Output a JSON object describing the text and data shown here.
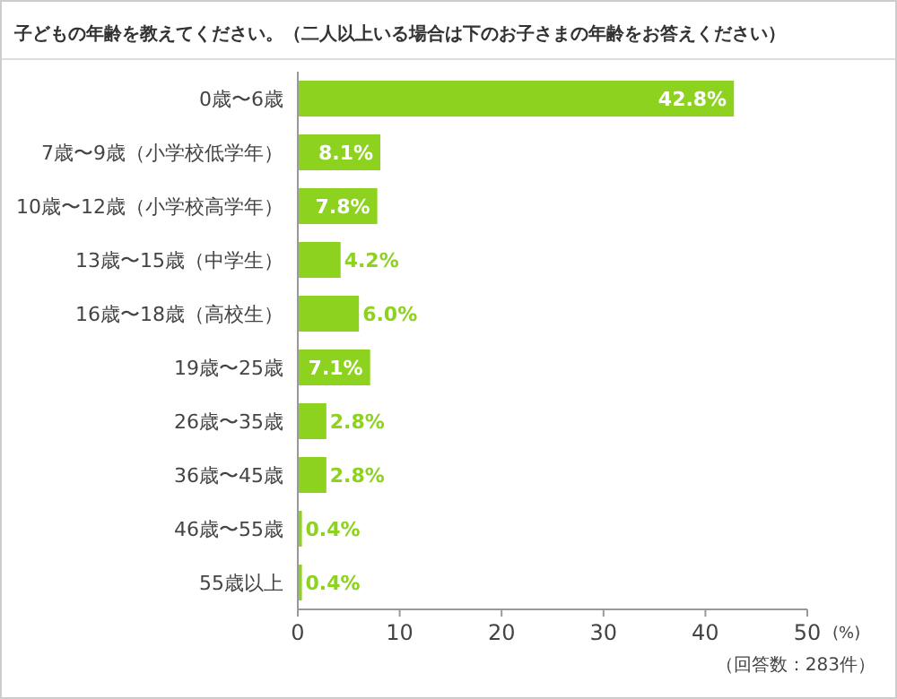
{
  "chart_data": {
    "type": "bar",
    "orientation": "horizontal",
    "title": "子どもの年齢を教えてください。（二人以上いる場合は下のお子さまの年齢をお答えください）",
    "categories": [
      "0歳〜6歳",
      "7歳〜9歳（小学校低学年）",
      "10歳〜12歳（小学校高学年）",
      "13歳〜15歳（中学生）",
      "16歳〜18歳（高校生）",
      "19歳〜25歳",
      "26歳〜35歳",
      "36歳〜45歳",
      "46歳〜55歳",
      "55歳以上"
    ],
    "values": [
      42.8,
      8.1,
      7.8,
      4.2,
      6.0,
      7.1,
      2.8,
      2.8,
      0.4,
      0.4
    ],
    "value_labels": [
      "42.8%",
      "8.1%",
      "7.8%",
      "4.2%",
      "6.0%",
      "7.1%",
      "2.8%",
      "2.8%",
      "0.4%",
      "0.4%"
    ],
    "color": "#8cd21e",
    "xlim": [
      0,
      50
    ],
    "xticks": [
      0,
      10,
      20,
      30,
      40,
      50
    ],
    "xlabel": "(%)",
    "annotations": [
      "（回答数：283件）"
    ],
    "grid": false
  }
}
